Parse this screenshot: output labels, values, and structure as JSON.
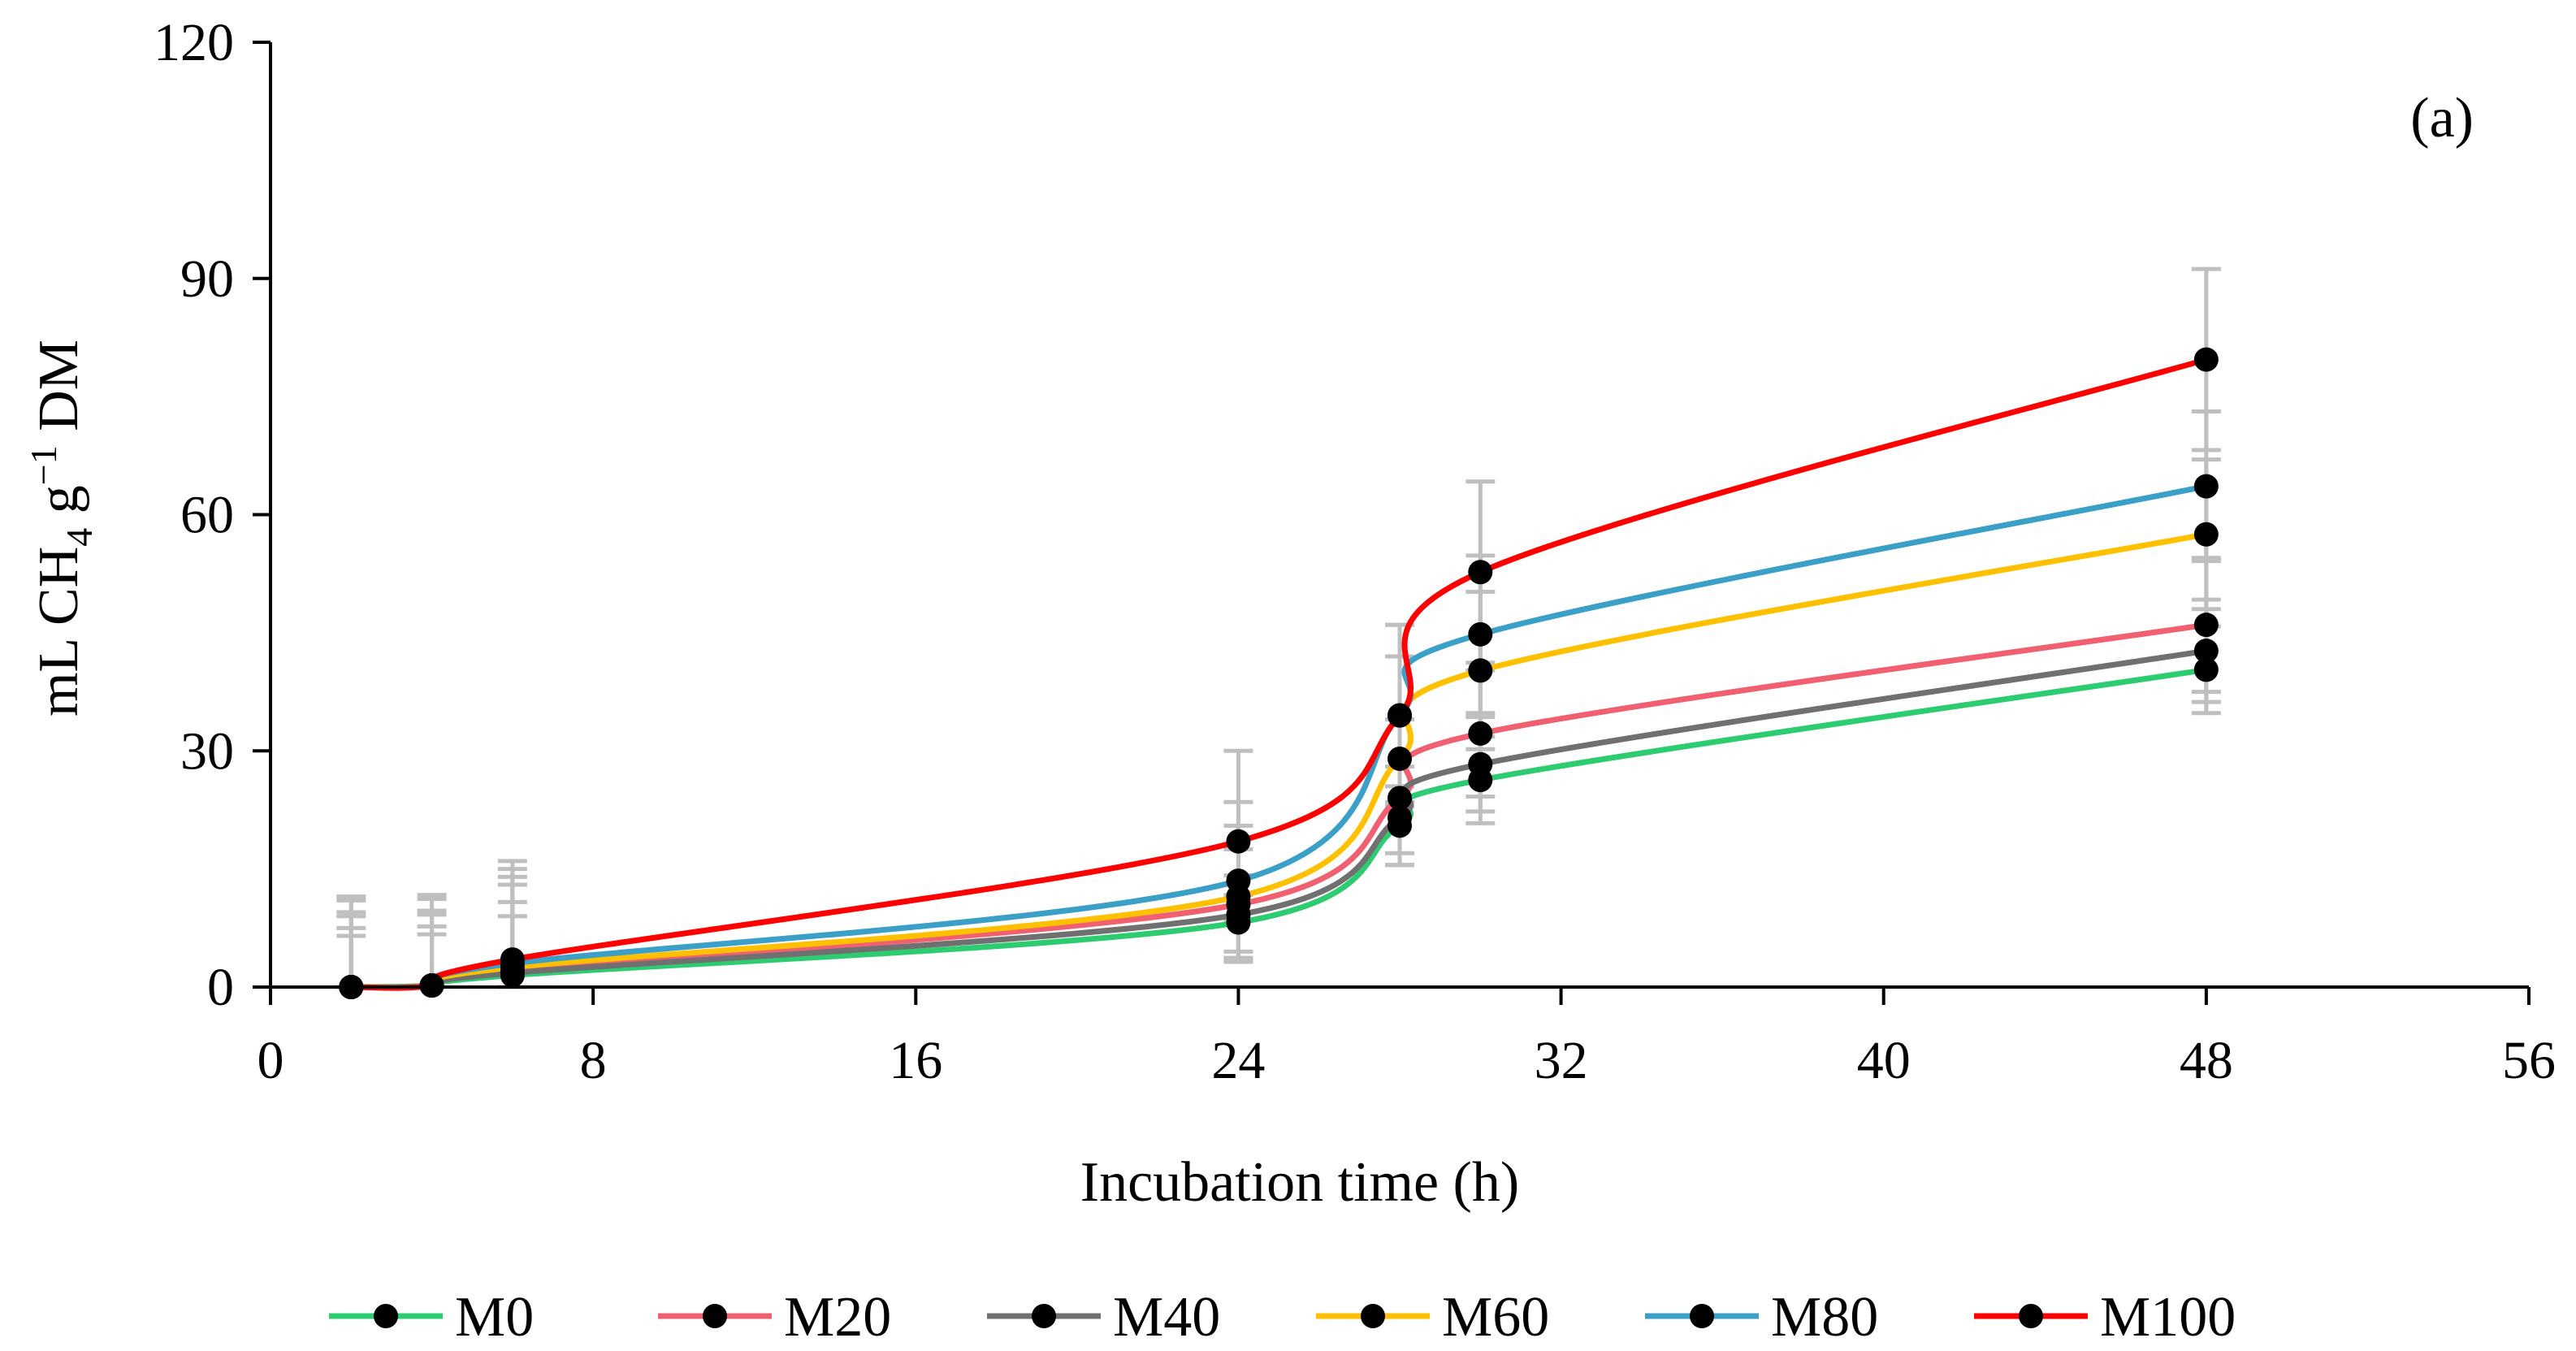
{
  "chart_data": {
    "type": "line",
    "panel_label": "(a)",
    "xlabel": "Incubation time (h)",
    "ylabel": {
      "prefix": "mL CH",
      "ch_subscript": "4",
      "middle": " g",
      "superscript": "−1",
      "suffix": " DM"
    },
    "xlim": [
      0,
      56
    ],
    "ylim": [
      0,
      120
    ],
    "x_ticks": [
      0,
      8,
      16,
      24,
      32,
      40,
      48,
      56
    ],
    "y_ticks": [
      0,
      30,
      60,
      90,
      120
    ],
    "x": [
      2,
      4,
      6,
      24,
      28,
      30,
      48
    ],
    "legend_position": "bottom",
    "marker_color": "#000000",
    "error_bar_color": "#bfbfbf",
    "series": [
      {
        "name": "M0",
        "color": "#2ecc71",
        "values": [
          0,
          0.2,
          1.5,
          8.2,
          20.5,
          26.3,
          40.3
        ],
        "err_upper": [
          6.5,
          6.5,
          7.5,
          3.5,
          5.0,
          5.5,
          5.5
        ],
        "err_lower": [
          0,
          0.2,
          1.5,
          5.0,
          5.0,
          5.5,
          5.5
        ]
      },
      {
        "name": "M20",
        "color": "#f06070",
        "values": [
          0,
          0.2,
          2.0,
          10.5,
          24.0,
          32.2,
          46.0
        ],
        "err_upper": [
          9.0,
          9.0,
          11.0,
          7.0,
          10.0,
          8.0,
          8.5
        ],
        "err_lower": [
          0,
          0.2,
          2.0,
          7.0,
          8.5,
          8.0,
          8.5
        ]
      },
      {
        "name": "M40",
        "color": "#707070",
        "values": [
          0,
          0.2,
          1.8,
          9.2,
          21.5,
          28.3,
          42.7
        ],
        "err_upper": [
          7.5,
          7.5,
          9.0,
          5.0,
          6.5,
          6.0,
          6.5
        ],
        "err_lower": [
          0,
          0.2,
          1.8,
          5.5,
          6.0,
          6.0,
          6.5
        ]
      },
      {
        "name": "M60",
        "color": "#ffc000",
        "values": [
          0,
          0.2,
          2.5,
          11.5,
          29.0,
          40.2,
          57.5
        ],
        "err_upper": [
          9.5,
          9.5,
          11.5,
          9.0,
          13.0,
          10.0,
          9.5
        ],
        "err_lower": [
          0,
          0.2,
          2.5,
          8.0,
          12.0,
          10.0,
          9.5
        ]
      },
      {
        "name": "M80",
        "color": "#3aa0c8",
        "values": [
          0,
          0.2,
          3.0,
          13.5,
          34.5,
          44.8,
          63.6
        ],
        "err_upper": [
          11.0,
          11.0,
          13.0,
          10.0,
          11.5,
          10.0,
          9.5
        ],
        "err_lower": [
          0,
          0.2,
          3.0,
          9.0,
          11.0,
          10.0,
          9.5
        ]
      },
      {
        "name": "M100",
        "color": "#ff0000",
        "values": [
          0,
          0.2,
          3.5,
          18.5,
          34.5,
          52.7,
          79.7
        ],
        "err_upper": [
          11.5,
          11.5,
          11.5,
          11.5,
          11.5,
          11.5,
          11.5
        ],
        "err_lower": [
          0,
          0.2,
          3.5,
          10.0,
          11.5,
          11.5,
          11.5
        ]
      }
    ]
  }
}
